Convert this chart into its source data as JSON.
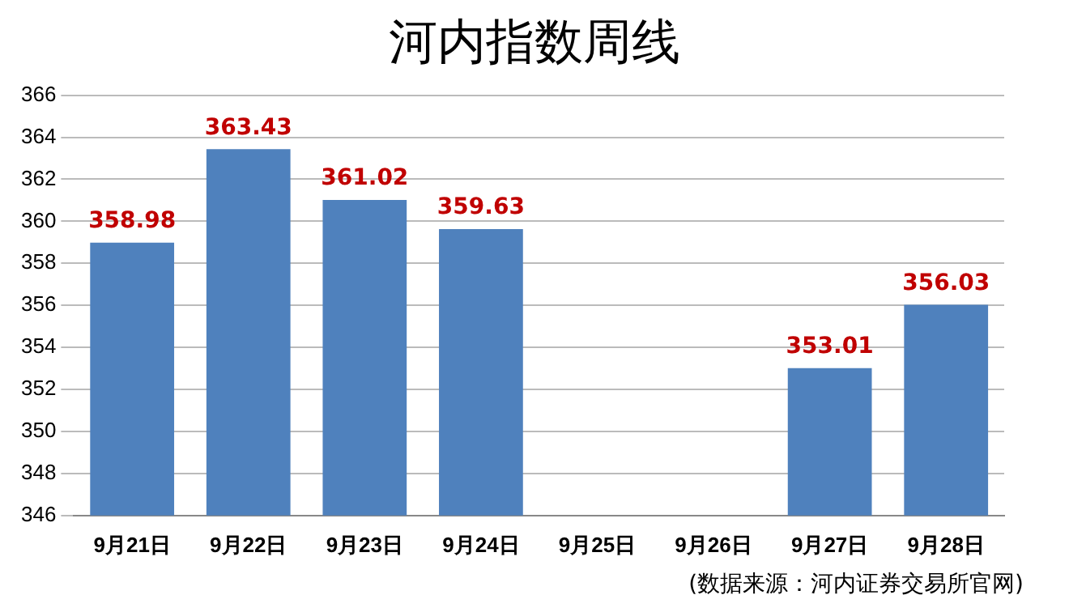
{
  "chart_data": {
    "type": "bar",
    "title": "河内指数周线",
    "categories": [
      "9月21日",
      "9月22日",
      "9月23日",
      "9月24日",
      "9月25日",
      "9月26日",
      "9月27日",
      "9月28日"
    ],
    "values": [
      358.98,
      363.43,
      361.02,
      359.63,
      null,
      null,
      353.01,
      356.03
    ],
    "color": "#4f81bd",
    "ylim": [
      346,
      366
    ],
    "yticks": [
      346,
      348,
      350,
      352,
      354,
      356,
      358,
      360,
      362,
      364,
      366
    ],
    "grid": "y",
    "data_labels": true,
    "legend": false,
    "annotations": [
      "(数据来源：河内证券交易所官网)"
    ]
  }
}
